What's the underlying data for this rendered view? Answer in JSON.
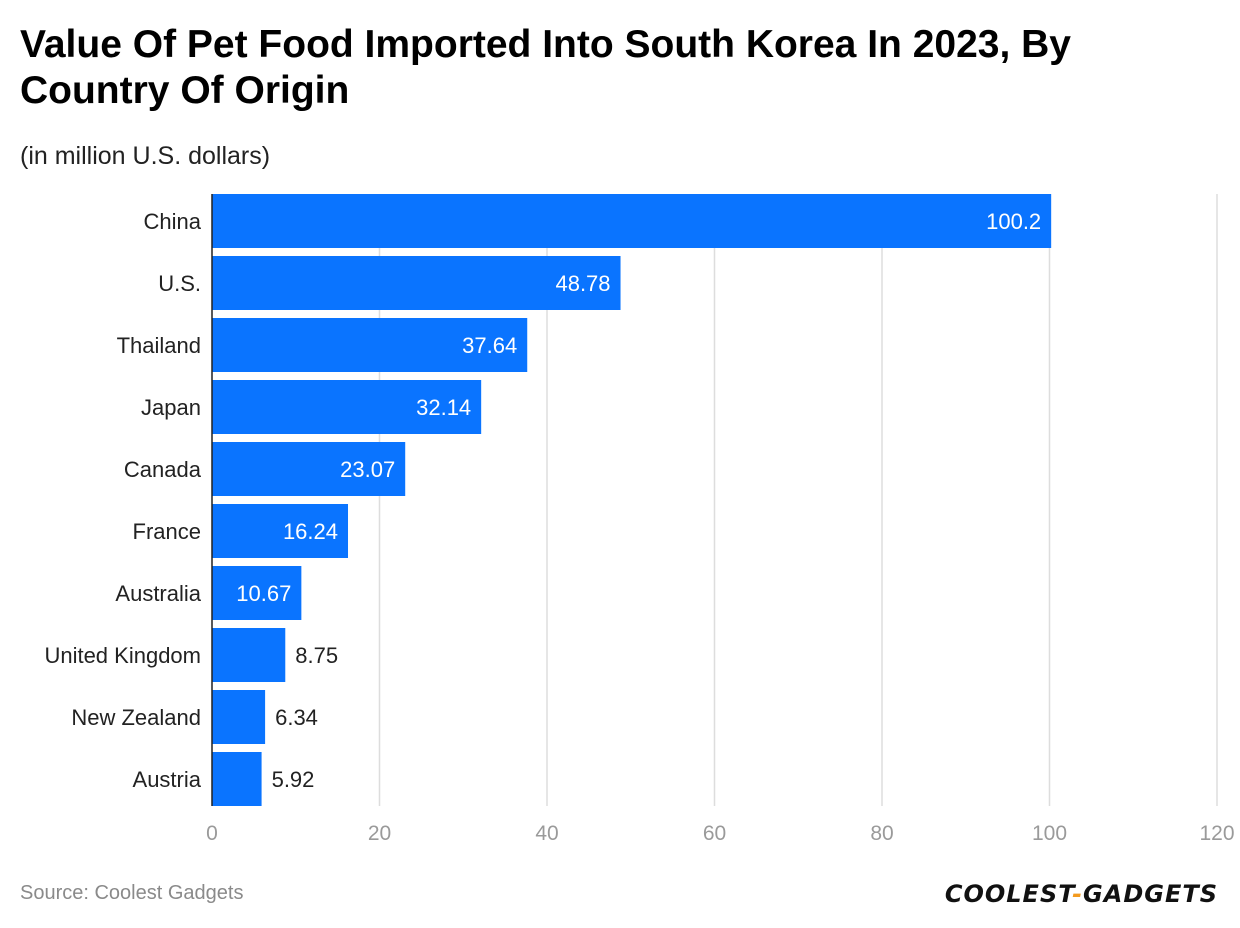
{
  "header": {
    "title": "Value Of Pet Food Imported Into South Korea In 2023, By Country Of Origin",
    "subtitle": "(in million U.S. dollars)"
  },
  "footer": {
    "source": "Source: Coolest Gadgets",
    "logo_left": "COOLEST",
    "logo_sep": "-",
    "logo_right": "GADGETS"
  },
  "colors": {
    "bar": "#0a74ff",
    "grid": "#dddddd",
    "axis": "#222222",
    "label_inside": "#ffffff",
    "label_outside": "#222222"
  },
  "chart_data": {
    "type": "bar",
    "orientation": "horizontal",
    "title": "Value Of Pet Food Imported Into South Korea In 2023, By Country Of Origin",
    "subtitle": "(in million U.S. dollars)",
    "categories": [
      "China",
      "U.S.",
      "Thailand",
      "Japan",
      "Canada",
      "France",
      "Australia",
      "United Kingdom",
      "New Zealand",
      "Austria"
    ],
    "values": [
      100.2,
      48.78,
      37.64,
      32.14,
      23.07,
      16.24,
      10.67,
      8.75,
      6.34,
      5.92
    ],
    "value_labels": [
      "100.2",
      "48.78",
      "37.64",
      "32.14",
      "23.07",
      "16.24",
      "10.67",
      "8.75",
      "6.34",
      "5.92"
    ],
    "xlim": [
      0,
      120
    ],
    "xticks": [
      0,
      20,
      40,
      60,
      80,
      100,
      120
    ],
    "xlabel": "",
    "ylabel": "",
    "grid": true,
    "legend": "none"
  }
}
